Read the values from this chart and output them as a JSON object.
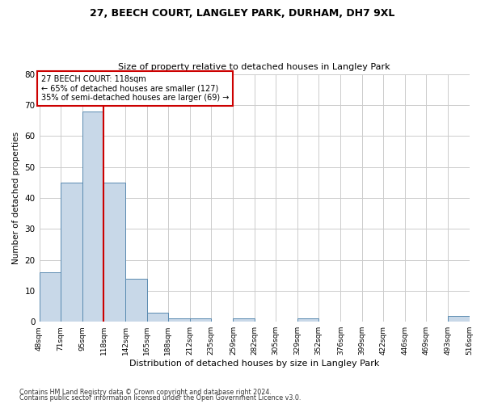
{
  "title1": "27, BEECH COURT, LANGLEY PARK, DURHAM, DH7 9XL",
  "title2": "Size of property relative to detached houses in Langley Park",
  "xlabel": "Distribution of detached houses by size in Langley Park",
  "ylabel": "Number of detached properties",
  "footnote1": "Contains HM Land Registry data © Crown copyright and database right 2024.",
  "footnote2": "Contains public sector information licensed under the Open Government Licence v3.0.",
  "annotation_line1": "27 BEECH COURT: 118sqm",
  "annotation_line2": "← 65% of detached houses are smaller (127)",
  "annotation_line3": "35% of semi-detached houses are larger (69) →",
  "subject_value": 118,
  "bin_edges": [
    48,
    71,
    95,
    118,
    142,
    165,
    188,
    212,
    235,
    259,
    282,
    305,
    329,
    352,
    376,
    399,
    422,
    446,
    469,
    493,
    516
  ],
  "bar_heights": [
    16,
    45,
    68,
    45,
    14,
    3,
    1,
    1,
    0,
    1,
    0,
    0,
    1,
    0,
    0,
    0,
    0,
    0,
    0,
    2
  ],
  "bar_color": "#c8d8e8",
  "bar_edge_color": "#5a8ab0",
  "ref_line_color": "#cc0000",
  "background_color": "#ffffff",
  "grid_color": "#cccccc",
  "ylim": [
    0,
    80
  ],
  "yticks": [
    0,
    10,
    20,
    30,
    40,
    50,
    60,
    70,
    80
  ]
}
